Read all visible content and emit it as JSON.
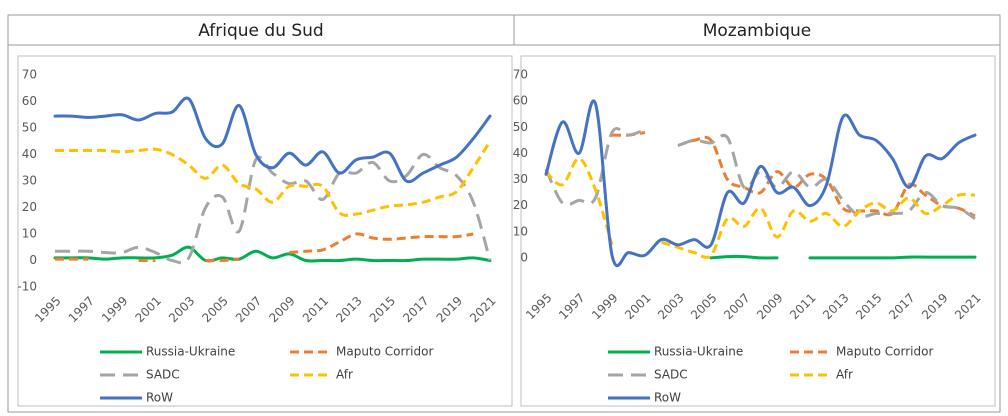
{
  "chart_data": [
    {
      "type": "line",
      "title": "Afrique du Sud",
      "x": [
        1995,
        1996,
        1997,
        1998,
        1999,
        2000,
        2001,
        2002,
        2003,
        2004,
        2005,
        2006,
        2007,
        2008,
        2009,
        2010,
        2011,
        2012,
        2013,
        2014,
        2015,
        2016,
        2017,
        2018,
        2019,
        2020,
        2021
      ],
      "xlim": [
        1995,
        2021
      ],
      "xticks": [
        1995,
        1997,
        1999,
        2001,
        2003,
        2005,
        2007,
        2009,
        2011,
        2013,
        2015,
        2017,
        2019,
        2021
      ],
      "ylim": [
        -10,
        70
      ],
      "yticks": [
        -10,
        0,
        10,
        20,
        30,
        40,
        50,
        60,
        70
      ],
      "grid": false,
      "series": [
        {
          "name": "Russia-Ukraine",
          "color": "#00b050",
          "dash": "solid",
          "values": [
            1,
            1,
            1,
            0.5,
            1,
            1,
            1,
            2,
            5,
            0,
            1,
            0.5,
            3.5,
            1,
            2.5,
            0,
            0,
            0,
            0.5,
            0,
            0,
            0,
            0.5,
            0.5,
            0.5,
            1,
            0
          ]
        },
        {
          "name": "Maputo Corridor",
          "color": "#ed7d31",
          "dash": "dash",
          "values": [
            0.5,
            0.5,
            0.5,
            null,
            null,
            0,
            0,
            null,
            null,
            0,
            0,
            0.5,
            null,
            null,
            3,
            3.5,
            4,
            7,
            10,
            8.5,
            8,
            8.5,
            9,
            9,
            9,
            10,
            null
          ]
        },
        {
          "name": "SADC",
          "color": "#a5a5a5",
          "dash": "longdash",
          "values": [
            3.5,
            3.5,
            3.5,
            3,
            3,
            5,
            3,
            0,
            1,
            20,
            24,
            11,
            38,
            33,
            29,
            30,
            23,
            33,
            33,
            37,
            30,
            32,
            40,
            35,
            32,
            22,
            0
          ]
        },
        {
          "name": "Afr",
          "color": "#ffc000",
          "dash": "dash",
          "values": [
            41.5,
            41.5,
            41.5,
            41.5,
            41,
            41.5,
            42,
            40,
            36,
            31,
            36,
            29,
            27,
            22,
            28,
            28,
            28,
            18,
            17.5,
            19,
            20.5,
            21,
            22,
            24,
            26,
            35,
            45
          ]
        },
        {
          "name": "RoW",
          "color": "#4472c4",
          "dash": "solid",
          "values": [
            54.5,
            54.5,
            54,
            54.5,
            55,
            53,
            55.5,
            56,
            61,
            46,
            44,
            58.5,
            40,
            35,
            40.5,
            36,
            41,
            33,
            38,
            39,
            40.5,
            30,
            33,
            36,
            39,
            46,
            54.5
          ]
        }
      ]
    },
    {
      "type": "line",
      "title": "Mozambique",
      "x": [
        1995,
        1996,
        1997,
        1998,
        1999,
        2000,
        2001,
        2002,
        2003,
        2004,
        2005,
        2006,
        2007,
        2008,
        2009,
        2010,
        2011,
        2012,
        2013,
        2014,
        2015,
        2016,
        2017,
        2018,
        2019,
        2020,
        2021
      ],
      "xlim": [
        1995,
        2021
      ],
      "xticks": [
        1995,
        1997,
        1999,
        2001,
        2003,
        2005,
        2007,
        2009,
        2011,
        2013,
        2015,
        2017,
        2019,
        2021
      ],
      "ylim": [
        -10,
        70
      ],
      "yticks": [
        0,
        10,
        20,
        30,
        40,
        50,
        60,
        70
      ],
      "grid": false,
      "series": [
        {
          "name": "Russia-Ukraine",
          "color": "#00b050",
          "dash": "solid",
          "values": [
            null,
            null,
            null,
            null,
            null,
            null,
            null,
            null,
            null,
            null,
            0,
            0.5,
            0.5,
            0,
            0,
            null,
            0,
            0,
            0,
            0,
            0,
            0,
            0.3,
            0.3,
            0.3,
            0.3,
            0.3
          ]
        },
        {
          "name": "Maputo Corridor",
          "color": "#ed7d31",
          "dash": "dash",
          "values": [
            null,
            null,
            null,
            null,
            47,
            47,
            48,
            null,
            43,
            45,
            45,
            30,
            27,
            25,
            33,
            27,
            32,
            30,
            19,
            18,
            18,
            17,
            28,
            24,
            20,
            19,
            16
          ]
        },
        {
          "name": "SADC",
          "color": "#a5a5a5",
          "dash": "longdash",
          "values": [
            34,
            21,
            22,
            23,
            48,
            47,
            49,
            null,
            43,
            45,
            44,
            46,
            27,
            33,
            27,
            33,
            27,
            30,
            22,
            16,
            17,
            17,
            18,
            25,
            20,
            19,
            15
          ]
        },
        {
          "name": "Afr",
          "color": "#ffc000",
          "dash": "dash",
          "values": [
            33,
            28,
            38,
            26,
            5,
            null,
            null,
            6,
            4,
            2,
            1,
            15,
            12,
            19,
            8,
            18,
            14,
            17,
            12,
            18,
            21,
            18,
            23,
            17,
            20,
            24,
            24
          ]
        },
        {
          "name": "RoW",
          "color": "#4472c4",
          "dash": "solid",
          "values": [
            32,
            52,
            40,
            59,
            1,
            2,
            1,
            7,
            5,
            7,
            5,
            25,
            21,
            35,
            25,
            27,
            20,
            28,
            54,
            47,
            45,
            38,
            27,
            39,
            38,
            44,
            47
          ]
        }
      ]
    }
  ]
}
